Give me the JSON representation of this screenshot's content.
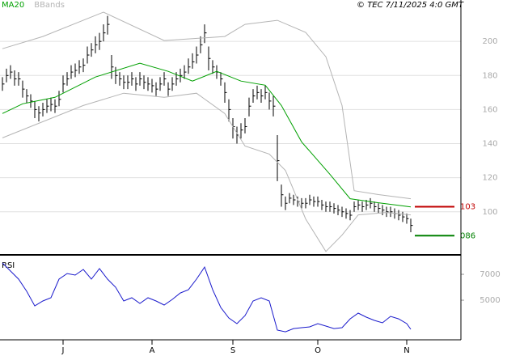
{
  "chart_data": [
    {
      "type": "ohlc",
      "source": "© TEC 7/11/2025 4:0 GMT",
      "xlim": [
        -0.6,
        113.4
      ],
      "ylim": [
        75.2,
        224.3
      ],
      "yticks": [
        100,
        120,
        140,
        160,
        180,
        200
      ],
      "grid": true,
      "bars": {
        "color": "#000000",
        "close": [
          175,
          180,
          182,
          178,
          178,
          172,
          168,
          165,
          160,
          158,
          160,
          162,
          163,
          162,
          166,
          175,
          178,
          182,
          183,
          185,
          186,
          192,
          195,
          198,
          200,
          205,
          210,
          185,
          180,
          178,
          176,
          176,
          178,
          175,
          178,
          176,
          175,
          174,
          172,
          175,
          178,
          172,
          175,
          178,
          180,
          182,
          185,
          188,
          192,
          198,
          205,
          190,
          185,
          182,
          178,
          170,
          160,
          150,
          145,
          148,
          150,
          162,
          168,
          170,
          168,
          170,
          165,
          162,
          130,
          110,
          105,
          108,
          107,
          106,
          105,
          105,
          107,
          106,
          106,
          104,
          103,
          103,
          102,
          101,
          100,
          99,
          98,
          103,
          104,
          103,
          104,
          105,
          103,
          102,
          101,
          100,
          100,
          99,
          98,
          97,
          96,
          92
        ],
        "high": [
          179,
          184,
          186,
          183,
          182,
          177,
          172,
          169,
          165,
          162,
          164,
          166,
          167,
          166,
          171,
          180,
          182,
          186,
          187,
          189,
          190,
          197,
          199,
          203,
          205,
          210,
          215,
          192,
          185,
          182,
          180,
          180,
          182,
          179,
          182,
          180,
          179,
          178,
          176,
          179,
          182,
          176,
          179,
          182,
          184,
          186,
          190,
          193,
          197,
          203,
          210,
          197,
          189,
          186,
          182,
          176,
          166,
          155,
          150,
          152,
          155,
          167,
          172,
          174,
          172,
          174,
          170,
          168,
          145,
          116,
          109,
          111,
          110,
          109,
          108,
          108,
          110,
          109,
          109,
          107,
          106,
          106,
          105,
          104,
          103,
          102,
          101,
          106,
          107,
          106,
          107,
          108,
          106,
          105,
          104,
          103,
          103,
          102,
          101,
          100,
          99,
          96
        ],
        "low": [
          171,
          176,
          178,
          174,
          174,
          167,
          164,
          161,
          155,
          153,
          156,
          158,
          159,
          158,
          162,
          170,
          174,
          178,
          179,
          181,
          182,
          187,
          191,
          193,
          195,
          200,
          204,
          178,
          175,
          174,
          172,
          172,
          174,
          171,
          174,
          172,
          171,
          170,
          168,
          171,
          174,
          168,
          171,
          174,
          176,
          178,
          181,
          184,
          187,
          193,
          199,
          183,
          181,
          178,
          174,
          164,
          153,
          143,
          140,
          143,
          146,
          156,
          164,
          166,
          164,
          166,
          160,
          156,
          118,
          103,
          101,
          105,
          104,
          103,
          102,
          102,
          104,
          103,
          103,
          101,
          100,
          100,
          99,
          98,
          97,
          96,
          95,
          100,
          101,
          100,
          101,
          102,
          100,
          99,
          98,
          97,
          97,
          96,
          95,
          94,
          93,
          88
        ]
      },
      "series": [
        {
          "name": "MA20",
          "color": "#00a000",
          "x": [
            0,
            5,
            13,
            23,
            34,
            41,
            47,
            53,
            59,
            65,
            69,
            74,
            81,
            86,
            93,
            101
          ],
          "values": [
            157.7,
            163.4,
            167.2,
            179.1,
            187.2,
            182.4,
            176.7,
            182.4,
            176.7,
            174.3,
            162.4,
            141.0,
            122.0,
            107.7,
            105.3,
            102.9
          ]
        },
        {
          "name": "BBands",
          "color": "#b4b4b4",
          "x": [
            0,
            10,
            25,
            40,
            55,
            60,
            68,
            75,
            80,
            84,
            87,
            93,
            101
          ],
          "values": [
            195.7,
            202.9,
            217.2,
            200.5,
            202.9,
            210.0,
            212.4,
            205.3,
            191.0,
            162.4,
            112.4,
            110.1,
            107.7
          ]
        },
        {
          "color": "#b4b4b4",
          "x": [
            0,
            10,
            20,
            30,
            40,
            48,
            55,
            60,
            66,
            70,
            75,
            80,
            84,
            88,
            95,
            101
          ],
          "values": [
            143.4,
            152.9,
            162.4,
            169.6,
            167.2,
            169.6,
            157.7,
            138.6,
            133.9,
            124.3,
            95.8,
            76.7,
            86.3,
            98.2,
            99.6,
            98.2
          ]
        }
      ],
      "levels": [
        {
          "value": 103,
          "label": "103",
          "color": "#c00000"
        },
        {
          "value": 86,
          "label": "086",
          "color": "#008000"
        }
      ]
    },
    {
      "type": "line",
      "title": "RSI",
      "xlim": [
        -0.6,
        113.4
      ],
      "ylim": [
        19.4,
        84.4
      ],
      "yticks": [
        {
          "value": 70,
          "label": "7000"
        },
        {
          "value": 50,
          "label": "5000"
        }
      ],
      "xticks": [
        {
          "value": 15,
          "label": "J"
        },
        {
          "value": 37,
          "label": "A"
        },
        {
          "value": 57,
          "label": "S"
        },
        {
          "value": 78,
          "label": "O"
        },
        {
          "value": 100,
          "label": "N"
        }
      ],
      "series": [
        {
          "color": "#1a1acc",
          "x": [
            0,
            2,
            4,
            6,
            8,
            10,
            12,
            14,
            16,
            18,
            20,
            22,
            24,
            26,
            28,
            30,
            32,
            34,
            36,
            38,
            40,
            42,
            44,
            46,
            48,
            50,
            52,
            54,
            56,
            58,
            60,
            62,
            64,
            66,
            68,
            70,
            72,
            74,
            76,
            78,
            80,
            82,
            84,
            86,
            88,
            90,
            92,
            94,
            96,
            98,
            100,
            101
          ],
          "values": [
            78.8,
            72.5,
            66.3,
            56.9,
            45.6,
            49.4,
            51.9,
            66.3,
            70.6,
            69.4,
            73.8,
            66.3,
            74.4,
            66.3,
            60,
            49.4,
            51.9,
            47.5,
            51.9,
            49.4,
            46.3,
            50.6,
            55.6,
            58.1,
            66.3,
            75.6,
            58.1,
            44.4,
            36.3,
            31.9,
            38.1,
            49.4,
            51.9,
            49.4,
            26.9,
            25.6,
            28.1,
            28.8,
            29.4,
            31.9,
            30,
            28.1,
            28.8,
            35.6,
            40,
            36.9,
            34.4,
            32.5,
            37.5,
            35.6,
            31.9,
            27.5
          ]
        }
      ]
    }
  ]
}
